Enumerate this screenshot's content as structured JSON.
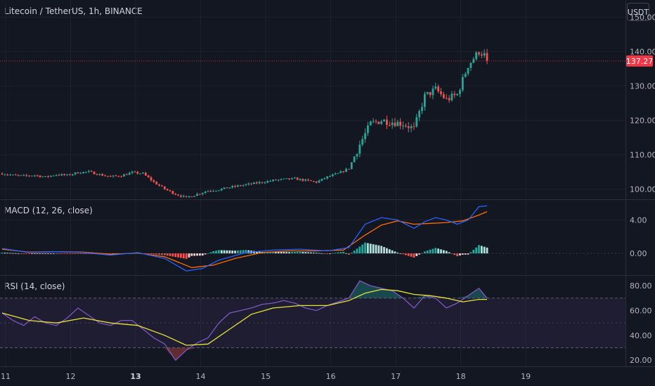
{
  "header": {
    "title": "Litecoin / TetherUS, 1h, BINANCE",
    "currency_button": "USDT"
  },
  "colors": {
    "background": "#131722",
    "grid": "#1e222d",
    "up": "#26a69a",
    "down": "#ef5350",
    "macd_line": "#2962ff",
    "signal_line": "#ff6d00",
    "rsi_line": "#7e57c2",
    "rsi_ma": "#e8e337",
    "axis_text": "#b2b5be",
    "last_price_bg": "#f23645"
  },
  "chart_data": [
    {
      "type": "candlestick",
      "title": "Litecoin / TetherUS, 1h, BINANCE",
      "x_ticks": [
        "11",
        "12",
        "13",
        "14",
        "15",
        "16",
        "17",
        "18",
        "19"
      ],
      "y_ticks": [
        "100.00",
        "110.00",
        "120.00",
        "130.00",
        "140.00",
        "150.00"
      ],
      "ylim": [
        97,
        155
      ],
      "last_price": "137.27",
      "close_path": [
        [
          0,
          104.5
        ],
        [
          4,
          104
        ],
        [
          8,
          103.8
        ],
        [
          12,
          104
        ],
        [
          16,
          103.5
        ],
        [
          20,
          104.2
        ],
        [
          24,
          104
        ],
        [
          28,
          104.8
        ],
        [
          32,
          105
        ],
        [
          36,
          104.2
        ],
        [
          40,
          103.6
        ],
        [
          44,
          103.9
        ],
        [
          48,
          104.8
        ],
        [
          52,
          104.5
        ],
        [
          56,
          102
        ],
        [
          60,
          100
        ],
        [
          64,
          98.5
        ],
        [
          68,
          97.5
        ],
        [
          72,
          98.5
        ],
        [
          76,
          99.5
        ],
        [
          80,
          99.8
        ],
        [
          84,
          100.5
        ],
        [
          88,
          101
        ],
        [
          92,
          101.5
        ],
        [
          96,
          102
        ],
        [
          100,
          102.5
        ],
        [
          104,
          102.8
        ],
        [
          108,
          103
        ],
        [
          112,
          102.5
        ],
        [
          116,
          102
        ],
        [
          120,
          103.5
        ],
        [
          124,
          104.5
        ],
        [
          128,
          106
        ],
        [
          132,
          113
        ],
        [
          136,
          119
        ],
        [
          140,
          120
        ],
        [
          144,
          119.5
        ],
        [
          148,
          119
        ],
        [
          152,
          117.5
        ],
        [
          156,
          127
        ],
        [
          160,
          129
        ],
        [
          164,
          126
        ],
        [
          168,
          127.5
        ],
        [
          172,
          136
        ],
        [
          176,
          140
        ],
        [
          178,
          139
        ],
        [
          179,
          137.27
        ]
      ]
    },
    {
      "type": "line",
      "title": "MACD (12, 26, close)",
      "y_ticks": [
        "0.00",
        "4.00"
      ],
      "ylim": [
        -2.6,
        6.4
      ],
      "series": [
        {
          "role": "macd",
          "points": [
            [
              0,
              0.6
            ],
            [
              10,
              0.1
            ],
            [
              20,
              0.2
            ],
            [
              30,
              0.1
            ],
            [
              40,
              -0.2
            ],
            [
              50,
              0.1
            ],
            [
              60,
              -0.6
            ],
            [
              68,
              -2.1
            ],
            [
              74,
              -1.8
            ],
            [
              80,
              -0.8
            ],
            [
              90,
              0.1
            ],
            [
              100,
              0.4
            ],
            [
              110,
              0.5
            ],
            [
              120,
              0.3
            ],
            [
              128,
              0.7
            ],
            [
              134,
              3.5
            ],
            [
              140,
              4.3
            ],
            [
              146,
              4.0
            ],
            [
              152,
              3.0
            ],
            [
              156,
              3.8
            ],
            [
              160,
              4.3
            ],
            [
              164,
              4.0
            ],
            [
              168,
              3.5
            ],
            [
              172,
              4.0
            ],
            [
              176,
              5.6
            ],
            [
              179,
              5.7
            ]
          ]
        },
        {
          "role": "signal",
          "points": [
            [
              0,
              0.5
            ],
            [
              10,
              0.15
            ],
            [
              20,
              0.2
            ],
            [
              30,
              0.15
            ],
            [
              40,
              -0.1
            ],
            [
              50,
              0.05
            ],
            [
              60,
              -0.4
            ],
            [
              70,
              -1.7
            ],
            [
              78,
              -1.4
            ],
            [
              86,
              -0.6
            ],
            [
              96,
              0.1
            ],
            [
              106,
              0.3
            ],
            [
              116,
              0.3
            ],
            [
              126,
              0.4
            ],
            [
              134,
              2.2
            ],
            [
              140,
              3.4
            ],
            [
              146,
              3.9
            ],
            [
              152,
              3.5
            ],
            [
              158,
              3.6
            ],
            [
              164,
              3.7
            ],
            [
              170,
              3.9
            ],
            [
              176,
              4.6
            ],
            [
              179,
              5.0
            ]
          ]
        }
      ]
    },
    {
      "type": "line",
      "title": "RSI (14, close)",
      "y_ticks": [
        "20.00",
        "40.00",
        "60.00",
        "80.00"
      ],
      "ylim": [
        15,
        88
      ],
      "bands": [
        30,
        50,
        70
      ],
      "series": [
        {
          "role": "rsi",
          "points": [
            [
              0,
              58
            ],
            [
              4,
              52
            ],
            [
              8,
              48
            ],
            [
              12,
              55
            ],
            [
              16,
              50
            ],
            [
              20,
              48
            ],
            [
              24,
              54
            ],
            [
              28,
              62
            ],
            [
              32,
              56
            ],
            [
              36,
              50
            ],
            [
              40,
              48
            ],
            [
              44,
              52
            ],
            [
              48,
              52
            ],
            [
              52,
              45
            ],
            [
              56,
              38
            ],
            [
              60,
              33
            ],
            [
              64,
              20
            ],
            [
              68,
              28
            ],
            [
              72,
              34
            ],
            [
              76,
              38
            ],
            [
              80,
              50
            ],
            [
              84,
              58
            ],
            [
              88,
              60
            ],
            [
              92,
              62
            ],
            [
              96,
              65
            ],
            [
              100,
              66
            ],
            [
              104,
              68
            ],
            [
              108,
              66
            ],
            [
              112,
              62
            ],
            [
              116,
              60
            ],
            [
              120,
              64
            ],
            [
              124,
              67
            ],
            [
              128,
              70
            ],
            [
              132,
              84
            ],
            [
              136,
              80
            ],
            [
              140,
              78
            ],
            [
              144,
              76
            ],
            [
              148,
              70
            ],
            [
              152,
              62
            ],
            [
              156,
              72
            ],
            [
              160,
              70
            ],
            [
              164,
              62
            ],
            [
              168,
              66
            ],
            [
              172,
              72
            ],
            [
              176,
              78
            ],
            [
              179,
              70
            ]
          ]
        },
        {
          "role": "rsi_ma",
          "points": [
            [
              0,
              58
            ],
            [
              10,
              52
            ],
            [
              20,
              50
            ],
            [
              30,
              54
            ],
            [
              40,
              50
            ],
            [
              50,
              48
            ],
            [
              60,
              40
            ],
            [
              68,
              32
            ],
            [
              76,
              33
            ],
            [
              84,
              45
            ],
            [
              92,
              57
            ],
            [
              100,
              62
            ],
            [
              110,
              64
            ],
            [
              120,
              64
            ],
            [
              128,
              68
            ],
            [
              134,
              74
            ],
            [
              140,
              77
            ],
            [
              146,
              76
            ],
            [
              152,
              73
            ],
            [
              158,
              72
            ],
            [
              164,
              70
            ],
            [
              170,
              67
            ],
            [
              176,
              69
            ],
            [
              179,
              69
            ]
          ]
        }
      ]
    }
  ]
}
